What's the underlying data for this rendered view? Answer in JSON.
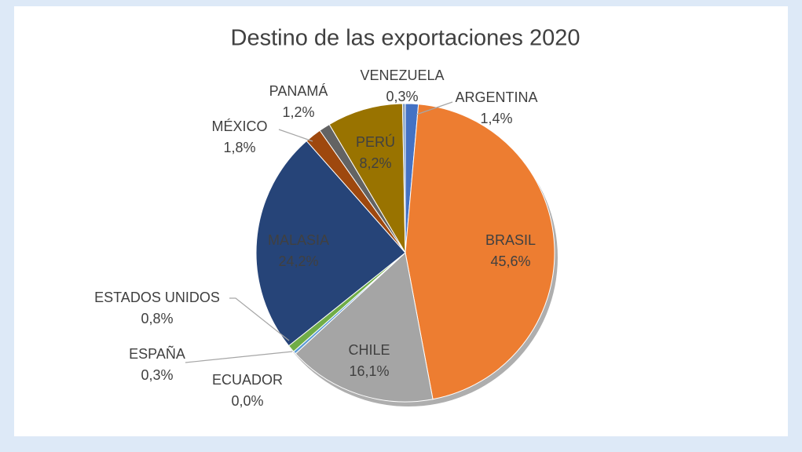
{
  "chart_data": {
    "type": "pie",
    "title": "Destino de las exportaciones 2020",
    "categories": [
      "ARGENTINA",
      "BRASIL",
      "CHILE",
      "ECUADOR",
      "ESPAÑA",
      "ESTADOS UNIDOS",
      "MALASIA",
      "MÉXICO",
      "PANAMÁ",
      "PERÚ",
      "VENEZUELA"
    ],
    "values": [
      1.4,
      45.6,
      16.1,
      0.0,
      0.3,
      0.8,
      24.2,
      1.8,
      1.2,
      8.2,
      0.3
    ],
    "value_labels": [
      "1,4%",
      "45,6%",
      "16,1%",
      "0,0%",
      "0,3%",
      "0,8%",
      "24,2%",
      "1,8%",
      "1,2%",
      "8,2%",
      "0,3%"
    ],
    "colors": [
      "#4472c4",
      "#ed7d31",
      "#a5a5a5",
      "#ffc000",
      "#5b9bd5",
      "#70ad47",
      "#264478",
      "#9e480e",
      "#636363",
      "#997300",
      "#7f9fc7"
    ]
  }
}
